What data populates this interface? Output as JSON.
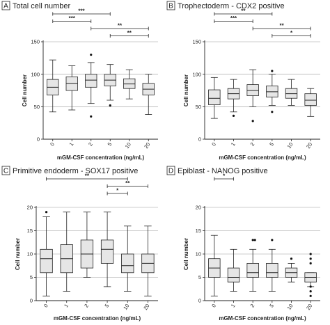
{
  "chart_data": [
    {
      "type": "box",
      "letter": "A",
      "title": "Total cell number",
      "xlabel": "mGM-CSF concentration (ng/mL)",
      "ylabel": "Cell number",
      "categories": [
        "0",
        "1",
        "2",
        "5",
        "10",
        "20"
      ],
      "ylim": [
        0,
        150
      ],
      "yticks": [
        0,
        50,
        100,
        150
      ],
      "grid": [
        50,
        100,
        150
      ],
      "boxes": [
        {
          "whisker_low": 42,
          "q1": 68,
          "median": 80,
          "q3": 92,
          "whisker_high": 122,
          "outliers": []
        },
        {
          "whisker_low": 45,
          "q1": 75,
          "median": 86,
          "q3": 96,
          "whisker_high": 113,
          "outliers": []
        },
        {
          "whisker_low": 55,
          "q1": 80,
          "median": 91,
          "q3": 100,
          "whisker_high": 118,
          "outliers": [
            130,
            35
          ]
        },
        {
          "whisker_low": 60,
          "q1": 82,
          "median": 91,
          "q3": 100,
          "whisker_high": 115,
          "outliers": [
            52
          ]
        },
        {
          "whisker_low": 62,
          "q1": 78,
          "median": 85,
          "q3": 93,
          "whisker_high": 107,
          "outliers": []
        },
        {
          "whisker_low": 38,
          "q1": 68,
          "median": 77,
          "q3": 86,
          "whisker_high": 100,
          "outliers": []
        }
      ],
      "significance": [
        {
          "from": "0",
          "to": "5",
          "label": "***"
        },
        {
          "from": "0",
          "to": "2",
          "label": "***"
        },
        {
          "from": "2",
          "to": "20",
          "label": "**"
        },
        {
          "from": "5",
          "to": "20",
          "label": "**"
        }
      ]
    },
    {
      "type": "box",
      "letter": "B",
      "title": "Trophectoderm - CDX2 positive",
      "xlabel": "mGM-CSF concentration (ng/mL)",
      "ylabel": "Cell number",
      "categories": [
        "0",
        "1",
        "2",
        "5",
        "10",
        "20"
      ],
      "ylim": [
        0,
        150
      ],
      "yticks": [
        0,
        50,
        100,
        150
      ],
      "grid": [
        50,
        100,
        150
      ],
      "boxes": [
        {
          "whisker_low": 32,
          "q1": 53,
          "median": 63,
          "q3": 76,
          "whisker_high": 95,
          "outliers": []
        },
        {
          "whisker_low": 42,
          "q1": 62,
          "median": 70,
          "q3": 78,
          "whisker_high": 92,
          "outliers": [
            36
          ]
        },
        {
          "whisker_low": 50,
          "q1": 67,
          "median": 75,
          "q3": 84,
          "whisker_high": 107,
          "outliers": [
            28
          ]
        },
        {
          "whisker_low": 52,
          "q1": 65,
          "median": 73,
          "q3": 82,
          "whisker_high": 100,
          "outliers": [
            105,
            42
          ]
        },
        {
          "whisker_low": 52,
          "q1": 63,
          "median": 70,
          "q3": 78,
          "whisker_high": 92,
          "outliers": []
        },
        {
          "whisker_low": 35,
          "q1": 52,
          "median": 60,
          "q3": 70,
          "whisker_high": 78,
          "outliers": []
        }
      ],
      "significance": [
        {
          "from": "0",
          "to": "5",
          "label": "**"
        },
        {
          "from": "0",
          "to": "2",
          "label": "***"
        },
        {
          "from": "2",
          "to": "20",
          "label": "**"
        },
        {
          "from": "5",
          "to": "20",
          "label": "*"
        }
      ]
    },
    {
      "type": "box",
      "letter": "C",
      "title": "Primitive endoderm - SOX17 positive",
      "xlabel": "mGM-CSF concentration (ng/mL)",
      "ylabel": "Cell number",
      "categories": [
        "0",
        "1",
        "2",
        "5",
        "10",
        "20"
      ],
      "ylim": [
        0,
        20
      ],
      "yticks": [
        0,
        5,
        10,
        15,
        20
      ],
      "grid": [
        5,
        10,
        15,
        20
      ],
      "boxes": [
        {
          "whisker_low": 1,
          "q1": 6,
          "median": 9,
          "q3": 11,
          "whisker_high": 18,
          "outliers": [
            19
          ]
        },
        {
          "whisker_low": 2,
          "q1": 6,
          "median": 9,
          "q3": 12,
          "whisker_high": 19,
          "outliers": []
        },
        {
          "whisker_low": 5,
          "q1": 7,
          "median": 10,
          "q3": 13,
          "whisker_high": 19,
          "outliers": []
        },
        {
          "whisker_low": 3,
          "q1": 8,
          "median": 11,
          "q3": 13,
          "whisker_high": 19,
          "outliers": []
        },
        {
          "whisker_low": 2,
          "q1": 6,
          "median": 7.5,
          "q3": 10,
          "whisker_high": 16,
          "outliers": []
        },
        {
          "whisker_low": 1,
          "q1": 6,
          "median": 8,
          "q3": 10,
          "whisker_high": 16,
          "outliers": []
        }
      ],
      "significance": [
        {
          "from": "0",
          "to": "10",
          "label": "**"
        },
        {
          "from": "5",
          "to": "20",
          "label": "**"
        },
        {
          "from": "5",
          "to": "10",
          "label": "*"
        }
      ]
    },
    {
      "type": "box",
      "letter": "D",
      "title": "Epiblast - NANOG positive",
      "xlabel": "mGM-CSF concentration (ng/mL)",
      "ylabel": "Cell number",
      "categories": [
        "0",
        "1",
        "2",
        "5",
        "10",
        "20"
      ],
      "ylim": [
        0,
        20
      ],
      "yticks": [
        0,
        5,
        10,
        15,
        20
      ],
      "grid": [
        5,
        10,
        15,
        20
      ],
      "boxes": [
        {
          "whisker_low": 1,
          "q1": 5,
          "median": 7,
          "q3": 9,
          "whisker_high": 14,
          "outliers": []
        },
        {
          "whisker_low": 2,
          "q1": 4,
          "median": 5,
          "q3": 7,
          "whisker_high": 11,
          "outliers": []
        },
        {
          "whisker_low": 2,
          "q1": 5,
          "median": 6,
          "q3": 8,
          "whisker_high": 11,
          "outliers": [
            13,
            13
          ]
        },
        {
          "whisker_low": 2,
          "q1": 5,
          "median": 6,
          "q3": 8,
          "whisker_high": 11,
          "outliers": [
            13
          ]
        },
        {
          "whisker_low": 4,
          "q1": 5,
          "median": 6,
          "q3": 7,
          "whisker_high": 8,
          "outliers": [
            9
          ]
        },
        {
          "whisker_low": 3,
          "q1": 4,
          "median": 5,
          "q3": 6,
          "whisker_high": 6,
          "outliers": [
            10,
            9,
            8,
            3,
            2,
            1
          ]
        }
      ],
      "significance": [
        {
          "from": "0",
          "to": "1",
          "label": "*"
        }
      ]
    }
  ]
}
